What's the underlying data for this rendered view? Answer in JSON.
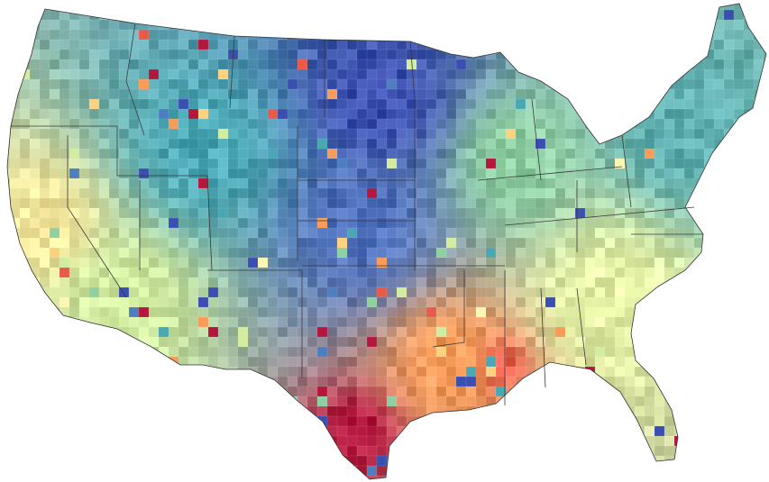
{
  "map": {
    "type": "choropleth",
    "region": "contiguous-united-states",
    "unit": "counties",
    "boundaries": [
      "state-borders",
      "county-borders"
    ],
    "labels": [],
    "color_scale": {
      "name": "spectral",
      "stops": [
        "#3b4fb0",
        "#4d7fc0",
        "#4aa8b5",
        "#8fd0a3",
        "#d2eca0",
        "#fbf6b3",
        "#fdd27f",
        "#f89c59",
        "#e85a4a",
        "#b5163e"
      ],
      "legend_visible": false
    },
    "regional_pattern": [
      {
        "area": "northern-plains",
        "level": "low",
        "color": "#3b4fb0"
      },
      {
        "area": "central-plains",
        "level": "low",
        "color": "#4d6fbd"
      },
      {
        "area": "mountain-west",
        "level": "low-mid",
        "color": "#4aa8b5"
      },
      {
        "area": "great-lakes",
        "level": "mid",
        "color": "#8fd0a3"
      },
      {
        "area": "northeast",
        "level": "low-mid",
        "color": "#5dafb0"
      },
      {
        "area": "pacific-coast",
        "level": "mid-high",
        "color": "#f5e79c"
      },
      {
        "area": "southwest",
        "level": "mid",
        "color": "#d2eca0"
      },
      {
        "area": "southeast",
        "level": "mid",
        "color": "#e6f3a6"
      },
      {
        "area": "gulf-coast",
        "level": "high",
        "color": "#f89c59"
      },
      {
        "area": "south-texas",
        "level": "very-high",
        "color": "#b5163e"
      },
      {
        "area": "mississippi-delta",
        "level": "high",
        "color": "#e85a4a"
      }
    ]
  }
}
